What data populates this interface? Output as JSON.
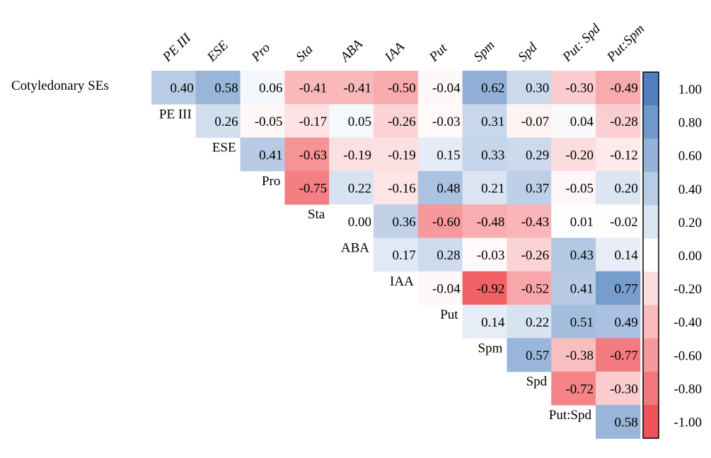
{
  "chart_data": {
    "type": "heatmap",
    "title": "",
    "columns": [
      "PE III",
      "ESE",
      "Pro",
      "Sta",
      "ABA",
      "IAA",
      "Put",
      "Spm",
      "Spd",
      "Put: Spd",
      "Put:Spm"
    ],
    "rows": [
      {
        "label": "Cotyledonary SEs",
        "start_col": 0,
        "values": [
          0.4,
          0.58,
          0.06,
          -0.41,
          -0.41,
          -0.5,
          -0.04,
          0.62,
          0.3,
          -0.3,
          -0.49
        ]
      },
      {
        "label": "PE III",
        "start_col": 1,
        "values": [
          0.26,
          -0.05,
          -0.17,
          0.05,
          -0.26,
          -0.03,
          0.31,
          -0.07,
          0.04,
          -0.28
        ]
      },
      {
        "label": "ESE",
        "start_col": 2,
        "values": [
          0.41,
          -0.63,
          -0.19,
          -0.19,
          0.15,
          0.33,
          0.29,
          -0.2,
          -0.12
        ]
      },
      {
        "label": "Pro",
        "start_col": 3,
        "values": [
          -0.75,
          0.22,
          -0.16,
          0.48,
          0.21,
          0.37,
          -0.05,
          0.2
        ]
      },
      {
        "label": "Sta",
        "start_col": 4,
        "values": [
          0.0,
          0.36,
          -0.6,
          -0.48,
          -0.43,
          0.01,
          -0.02
        ]
      },
      {
        "label": "ABA",
        "start_col": 5,
        "values": [
          0.17,
          0.28,
          -0.03,
          -0.26,
          0.43,
          0.14
        ]
      },
      {
        "label": "IAA",
        "start_col": 6,
        "values": [
          -0.04,
          -0.92,
          -0.52,
          0.41,
          0.77
        ]
      },
      {
        "label": "Put",
        "start_col": 7,
        "values": [
          0.14,
          0.22,
          0.51,
          0.49
        ]
      },
      {
        "label": "Spm",
        "start_col": 8,
        "values": [
          0.57,
          -0.38,
          -0.77
        ]
      },
      {
        "label": "Spd",
        "start_col": 9,
        "values": [
          -0.72,
          -0.3
        ]
      },
      {
        "label": "Put:Spd",
        "start_col": 10,
        "values": [
          0.58
        ]
      }
    ],
    "colorscale": {
      "min": -1.0,
      "max": 1.0,
      "negative_color": "#f0545a",
      "zero_color": "#ffffff",
      "positive_color": "#4f7fbf"
    },
    "legend_ticks": [
      "1.00",
      "0.80",
      "0.60",
      "0.40",
      "0.20",
      "0.00",
      "-0.20",
      "-0.40",
      "-0.60",
      "-0.80",
      "-1.00"
    ]
  }
}
